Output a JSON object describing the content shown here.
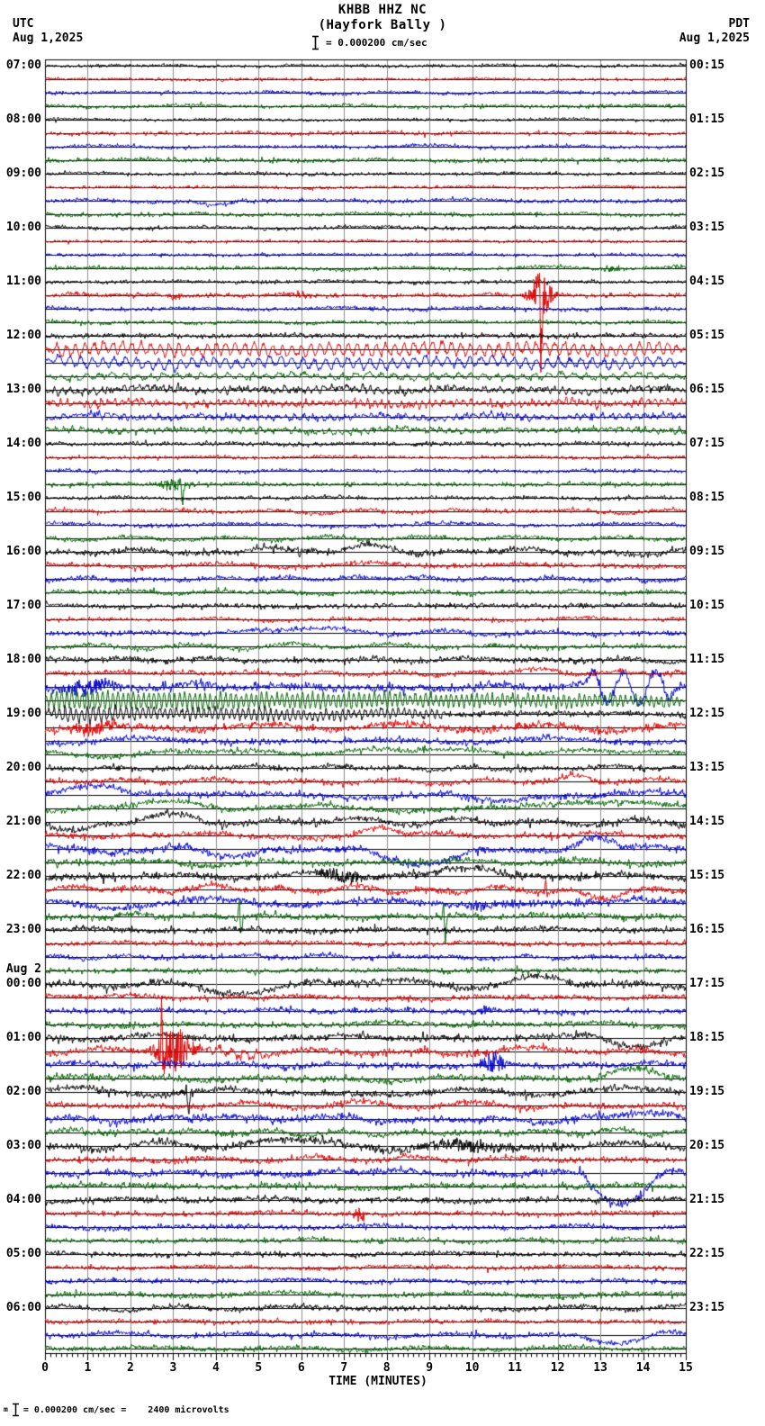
{
  "header": {
    "tz_left": "UTC",
    "date_left": "Aug 1,2025",
    "tz_right": "PDT",
    "date_right": "Aug 1,2025",
    "title": "KHBB HHZ NC",
    "subtitle": "(Hayfork Bally )",
    "scale_label": "= 0.000200 cm/sec"
  },
  "footer": {
    "prefix": "m",
    "scale_note": "= 0.000200 cm/sec =    2400 microvolts"
  },
  "chart_data": {
    "type": "line",
    "kind": "helicorder-seismogram",
    "station": "KHBB",
    "channel": "HHZ",
    "network": "NC",
    "station_name": "Hayfork Bally",
    "xlabel": "TIME (MINUTES)",
    "x_range": [
      0,
      15
    ],
    "x_ticks": [
      "0",
      "1",
      "2",
      "3",
      "4",
      "5",
      "6",
      "7",
      "8",
      "9",
      "10",
      "11",
      "12",
      "13",
      "14",
      "15"
    ],
    "minutes_per_line": 15,
    "grid": true,
    "grid_color": "#8c8c8c",
    "trace_colors": [
      "#000000",
      "#dd0000",
      "#0000cc",
      "#006600"
    ],
    "date_break_label": "Aug 2",
    "date_break_row": 17,
    "rows": [
      {
        "utc": "07:00",
        "pdt": "00:15",
        "traces": [
          [
            1.1,
            0.3
          ],
          [
            1.0,
            0.4
          ],
          [
            1.3,
            0.5
          ],
          [
            1.4,
            0.5
          ]
        ]
      },
      {
        "utc": "08:00",
        "pdt": "01:15",
        "traces": [
          [
            1.1,
            0.4
          ],
          [
            1.4,
            0.4
          ],
          [
            1.3,
            0.6
          ],
          [
            1.7,
            0.5
          ]
        ]
      },
      {
        "utc": "09:00",
        "pdt": "02:15",
        "traces": [
          [
            1.2,
            0.4
          ],
          [
            1.1,
            0.4
          ],
          [
            1.5,
            0.8
          ],
          [
            1.4,
            0.7
          ]
        ]
      },
      {
        "utc": "10:00",
        "pdt": "03:15",
        "traces": [
          [
            1.4,
            0.6
          ],
          [
            1.1,
            0.4
          ],
          [
            1.2,
            0.5
          ],
          [
            1.4,
            0.8
          ]
        ]
      },
      {
        "utc": "11:00",
        "pdt": "04:15",
        "traces": [
          [
            1.4,
            0.6
          ],
          [
            1.6,
            0.5
          ],
          [
            1.4,
            0.6
          ],
          [
            1.4,
            0.6
          ]
        ]
      },
      {
        "utc": "12:00",
        "pdt": "05:15",
        "traces": [
          [
            1.8,
            0.5
          ],
          [
            2.0,
            1.0
          ],
          [
            1.8,
            1.0
          ],
          [
            1.6,
            0.8
          ]
        ]
      },
      {
        "utc": "13:00",
        "pdt": "06:15",
        "traces": [
          [
            2.2,
            0.8
          ],
          [
            2.2,
            0.6
          ],
          [
            2.0,
            0.8
          ],
          [
            2.0,
            0.6
          ]
        ]
      },
      {
        "utc": "14:00",
        "pdt": "07:15",
        "traces": [
          [
            1.6,
            0.5
          ],
          [
            1.3,
            0.4
          ],
          [
            1.3,
            0.4
          ],
          [
            1.6,
            0.4
          ]
        ]
      },
      {
        "utc": "15:00",
        "pdt": "08:15",
        "traces": [
          [
            1.4,
            0.5
          ],
          [
            1.6,
            1.0
          ],
          [
            1.5,
            0.8
          ],
          [
            1.6,
            0.8
          ]
        ]
      },
      {
        "utc": "16:00",
        "pdt": "09:15",
        "traces": [
          [
            2.2,
            1.2
          ],
          [
            1.8,
            1.0
          ],
          [
            1.8,
            1.2
          ],
          [
            1.7,
            0.8
          ]
        ]
      },
      {
        "utc": "17:00",
        "pdt": "10:15",
        "traces": [
          [
            1.8,
            0.8
          ],
          [
            1.5,
            0.6
          ],
          [
            1.8,
            1.4
          ],
          [
            1.8,
            1.2
          ]
        ]
      },
      {
        "utc": "18:00",
        "pdt": "11:15",
        "traces": [
          [
            2.0,
            1.0
          ],
          [
            1.8,
            1.0
          ],
          [
            3.0,
            2.0
          ],
          [
            2.2,
            0.8
          ]
        ]
      },
      {
        "utc": "19:00",
        "pdt": "12:15",
        "traces": [
          [
            2.2,
            1.0
          ],
          [
            2.8,
            1.5
          ],
          [
            2.2,
            1.2
          ],
          [
            2.0,
            1.5
          ]
        ]
      },
      {
        "utc": "20:00",
        "pdt": "13:15",
        "traces": [
          [
            2.0,
            1.2
          ],
          [
            2.0,
            1.2
          ],
          [
            2.4,
            2.0
          ],
          [
            2.2,
            1.5
          ]
        ]
      },
      {
        "utc": "21:00",
        "pdt": "14:15",
        "traces": [
          [
            2.4,
            1.8
          ],
          [
            2.2,
            1.5
          ],
          [
            2.6,
            2.0
          ],
          [
            2.4,
            1.8
          ]
        ]
      },
      {
        "utc": "22:00",
        "pdt": "15:15",
        "traces": [
          [
            2.6,
            1.5
          ],
          [
            2.4,
            1.8
          ],
          [
            2.8,
            2.0
          ],
          [
            2.4,
            1.0
          ]
        ]
      },
      {
        "utc": "23:00",
        "pdt": "16:15",
        "traces": [
          [
            2.2,
            0.8
          ],
          [
            1.8,
            0.6
          ],
          [
            1.8,
            1.0
          ],
          [
            1.8,
            0.8
          ]
        ]
      },
      {
        "utc": "00:00",
        "pdt": "17:15",
        "traces": [
          [
            2.6,
            1.8
          ],
          [
            2.0,
            1.2
          ],
          [
            2.0,
            1.0
          ],
          [
            2.2,
            1.4
          ]
        ]
      },
      {
        "utc": "01:00",
        "pdt": "18:15",
        "traces": [
          [
            2.4,
            1.6
          ],
          [
            2.4,
            1.8
          ],
          [
            2.2,
            1.2
          ],
          [
            2.4,
            1.8
          ]
        ]
      },
      {
        "utc": "02:00",
        "pdt": "19:15",
        "traces": [
          [
            2.4,
            1.8
          ],
          [
            2.2,
            1.6
          ],
          [
            2.6,
            2.2
          ],
          [
            2.2,
            1.4
          ]
        ]
      },
      {
        "utc": "03:00",
        "pdt": "20:15",
        "traces": [
          [
            2.8,
            2.0
          ],
          [
            2.2,
            1.2
          ],
          [
            2.4,
            1.6
          ],
          [
            2.2,
            1.2
          ]
        ]
      },
      {
        "utc": "04:00",
        "pdt": "21:15",
        "traces": [
          [
            2.2,
            1.0
          ],
          [
            1.8,
            0.6
          ],
          [
            1.8,
            0.8
          ],
          [
            1.8,
            0.8
          ]
        ]
      },
      {
        "utc": "05:00",
        "pdt": "22:15",
        "traces": [
          [
            1.8,
            0.8
          ],
          [
            1.6,
            0.6
          ],
          [
            1.8,
            0.8
          ],
          [
            2.0,
            1.0
          ]
        ]
      },
      {
        "utc": "06:00",
        "pdt": "23:15",
        "traces": [
          [
            2.0,
            1.0
          ],
          [
            1.6,
            0.6
          ],
          [
            2.0,
            1.2
          ],
          [
            1.8,
            0.8
          ]
        ]
      }
    ],
    "events": [
      {
        "r": 2,
        "t": 2,
        "k": "hump",
        "t0": 3.4,
        "t1": 4.6,
        "a": -5
      },
      {
        "r": 3,
        "t": 3,
        "k": "burst",
        "t0": 13.05,
        "t1": 13.65,
        "a": 4
      },
      {
        "r": 4,
        "t": 1,
        "k": "burst",
        "t0": 2.85,
        "t1": 3.25,
        "a": 4
      },
      {
        "r": 4,
        "t": 1,
        "k": "burst",
        "t0": 5.6,
        "t1": 6.4,
        "a": 3.5
      },
      {
        "r": 4,
        "t": 1,
        "k": "burst",
        "t0": 11.25,
        "t1": 11.95,
        "a": 26
      },
      {
        "r": 4,
        "t": 1,
        "k": "spike",
        "t0": 11.57,
        "a": 28,
        "a2": 62
      },
      {
        "r": 5,
        "t": 1,
        "k": "sine",
        "t0": 0,
        "t1": 15,
        "a": 6,
        "p": 0.22
      },
      {
        "r": 5,
        "t": 2,
        "k": "sine",
        "t0": 0,
        "t1": 15,
        "a": 5,
        "p": 0.26
      },
      {
        "r": 5,
        "t": 3,
        "k": "sine",
        "t0": 0,
        "t1": 15,
        "a": 2.5,
        "p": 0.3
      },
      {
        "r": 6,
        "t": 0,
        "k": "sine",
        "t0": 0,
        "t1": 15,
        "a": 2,
        "p": 0.18
      },
      {
        "r": 6,
        "t": 1,
        "k": "sine",
        "t0": 0,
        "t1": 15,
        "a": 2.2,
        "p": 0.16
      },
      {
        "r": 6,
        "t": 2,
        "k": "sine",
        "t0": 0,
        "t1": 15,
        "a": 1.6,
        "p": 0.2
      },
      {
        "r": 6,
        "t": 3,
        "k": "sine",
        "t0": 0,
        "t1": 15,
        "a": 1.6,
        "p": 0.2
      },
      {
        "r": 7,
        "t": 3,
        "k": "burst",
        "t0": 2.55,
        "t1": 3.45,
        "a": 7
      },
      {
        "r": 7,
        "t": 3,
        "k": "spike",
        "t0": 3.18,
        "a": 4,
        "a2": 19
      },
      {
        "r": 9,
        "t": 0,
        "k": "hump",
        "t0": 4.4,
        "t1": 5.7,
        "a": 7
      },
      {
        "r": 9,
        "t": 0,
        "k": "spike",
        "t0": 5.92,
        "a": 2,
        "a2": 9
      },
      {
        "r": 9,
        "t": 0,
        "k": "hump",
        "t0": 6.8,
        "t1": 8.6,
        "a": 6
      },
      {
        "r": 10,
        "t": 2,
        "k": "hump",
        "t0": 4.8,
        "t1": 7.2,
        "a": 5
      },
      {
        "r": 11,
        "t": 2,
        "k": "burst",
        "t0": 0.05,
        "t1": 1.9,
        "a": 8
      },
      {
        "r": 11,
        "t": 2,
        "k": "sine",
        "t0": 12.6,
        "t1": 14.85,
        "a": 18,
        "p": 0.75
      },
      {
        "r": 11,
        "t": 3,
        "k": "sine",
        "t0": 0,
        "t1": 15,
        "a": 9,
        "p": 0.12,
        "d": 0.55
      },
      {
        "r": 11,
        "t": 1,
        "k": "hump",
        "t0": 10.4,
        "t1": 12.2,
        "a": 4
      },
      {
        "r": 12,
        "t": 0,
        "k": "sine",
        "t0": 0.05,
        "t1": 9.5,
        "a": 7,
        "p": 0.13,
        "d": 0.5
      },
      {
        "r": 12,
        "t": 1,
        "k": "burst",
        "t0": 0.2,
        "t1": 2,
        "a": 6
      },
      {
        "r": 12,
        "t": 3,
        "k": "hump",
        "t0": 2.5,
        "t1": 14.9,
        "a": 5
      },
      {
        "r": 13,
        "t": 3,
        "k": "hump",
        "t0": 1.9,
        "t1": 4.3,
        "a": 8
      },
      {
        "r": 13,
        "t": 3,
        "k": "hump",
        "t0": 10.9,
        "t1": 15,
        "a": 8
      },
      {
        "r": 13,
        "t": 2,
        "k": "hump",
        "t0": 0,
        "t1": 2.2,
        "a": 10
      },
      {
        "r": 13,
        "t": 2,
        "k": "hump",
        "t0": 9.4,
        "t1": 11.6,
        "a": -9
      },
      {
        "r": 13,
        "t": 1,
        "k": "hump",
        "t0": 11.9,
        "t1": 13,
        "a": 5
      },
      {
        "r": 14,
        "t": 0,
        "k": "hump",
        "t0": 0,
        "t1": 1.4,
        "a": -10
      },
      {
        "r": 14,
        "t": 0,
        "k": "hump",
        "t0": 1.7,
        "t1": 3.7,
        "a": 7
      },
      {
        "r": 14,
        "t": 2,
        "k": "hump",
        "t0": 3.3,
        "t1": 5.2,
        "a": -12
      },
      {
        "r": 14,
        "t": 2,
        "k": "hump",
        "t0": 7.4,
        "t1": 10,
        "a": -17
      },
      {
        "r": 14,
        "t": 2,
        "k": "hump",
        "t0": 12.2,
        "t1": 13.5,
        "a": 13
      },
      {
        "r": 14,
        "t": 1,
        "k": "hump",
        "t0": 7.2,
        "t1": 8.4,
        "a": 7
      },
      {
        "r": 15,
        "t": 0,
        "k": "burst",
        "t0": 6.2,
        "t1": 7.7,
        "a": 8
      },
      {
        "r": 15,
        "t": 0,
        "k": "hump",
        "t0": 8.9,
        "t1": 10.9,
        "a": 8
      },
      {
        "r": 15,
        "t": 1,
        "k": "spike",
        "t0": 11.72,
        "a": 17,
        "a2": 5
      },
      {
        "r": 15,
        "t": 1,
        "k": "hump",
        "t0": 12.2,
        "t1": 14.3,
        "a": -8
      },
      {
        "r": 15,
        "t": 3,
        "k": "spike",
        "t0": 4.55,
        "a": 20,
        "a2": 21
      },
      {
        "r": 15,
        "t": 3,
        "k": "spike",
        "t0": 9.33,
        "a": 24,
        "a2": 26
      },
      {
        "r": 15,
        "t": 2,
        "k": "burst",
        "t0": 9.75,
        "t1": 10.45,
        "a": 6
      },
      {
        "r": 17,
        "t": 0,
        "k": "hump",
        "t0": 2.7,
        "t1": 6.3,
        "a": -7
      },
      {
        "r": 17,
        "t": 0,
        "k": "hump",
        "t0": 10.7,
        "t1": 12.5,
        "a": 6
      },
      {
        "r": 17,
        "t": 2,
        "k": "burst",
        "t0": 9.85,
        "t1": 10.75,
        "a": 4
      },
      {
        "r": 18,
        "t": 1,
        "k": "burst",
        "t0": 2.4,
        "t1": 3.65,
        "a": 24
      },
      {
        "r": 18,
        "t": 1,
        "k": "spike",
        "t0": 2.73,
        "a": 70,
        "a2": 12
      },
      {
        "r": 18,
        "t": 1,
        "k": "sine",
        "t0": 3.7,
        "t1": 5.3,
        "a": 4,
        "p": 0.3
      },
      {
        "r": 18,
        "t": 2,
        "k": "burst",
        "t0": 10.1,
        "t1": 10.9,
        "a": 13
      },
      {
        "r": 18,
        "t": 0,
        "k": "hump",
        "t0": 6.4,
        "t1": 8.1,
        "a": 5
      },
      {
        "r": 18,
        "t": 0,
        "k": "hump",
        "t0": 12.9,
        "t1": 14.7,
        "a": -8
      },
      {
        "r": 18,
        "t": 3,
        "k": "hump",
        "t0": 12.9,
        "t1": 14.6,
        "a": 8
      },
      {
        "r": 19,
        "t": 0,
        "k": "spike",
        "t0": 3.32,
        "a": 8,
        "a2": 26
      },
      {
        "r": 19,
        "t": 0,
        "k": "burst",
        "t0": 3.05,
        "t1": 3.55,
        "a": 5
      },
      {
        "r": 19,
        "t": 2,
        "k": "hump",
        "t0": 13.1,
        "t1": 15,
        "a": 8
      },
      {
        "r": 20,
        "t": 0,
        "k": "hump",
        "t0": 4.4,
        "t1": 7.1,
        "a": 6
      },
      {
        "r": 20,
        "t": 0,
        "k": "burst",
        "t0": 8.3,
        "t1": 11.3,
        "a": 6
      },
      {
        "r": 20,
        "t": 2,
        "k": "spike",
        "t0": 12.52,
        "a": 12,
        "a2": 3
      },
      {
        "r": 20,
        "t": 2,
        "k": "hump",
        "t0": 12.6,
        "t1": 14.35,
        "a": -36
      },
      {
        "r": 20,
        "t": 2,
        "k": "hump",
        "t0": 14.35,
        "t1": 15,
        "a": 5
      },
      {
        "r": 21,
        "t": 1,
        "k": "burst",
        "t0": 7.1,
        "t1": 7.65,
        "a": 7
      },
      {
        "r": 23,
        "t": 2,
        "k": "hump",
        "t0": 12.4,
        "t1": 14.4,
        "a": -8
      }
    ]
  }
}
